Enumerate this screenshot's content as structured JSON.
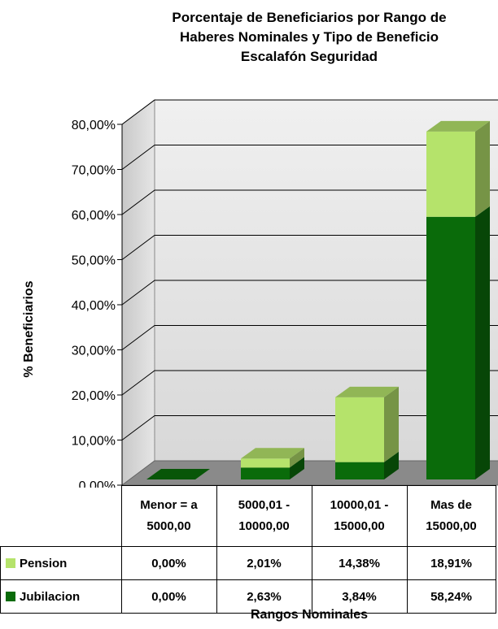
{
  "chart_data": {
    "type": "bar",
    "stacked": true,
    "three_d": true,
    "title": "Porcentaje de Beneficiarios por Rango de Haberes Nominales y Tipo de Beneficio Escalafón Seguridad",
    "title_lines": [
      "Porcentaje de Beneficiarios por Rango de",
      "Haberes Nominales y Tipo de Beneficio",
      "Escalafón Seguridad"
    ],
    "ylabel": "% Beneficiarios",
    "xlabel": "Rangos Nominales",
    "ylim": [
      0,
      80
    ],
    "yticks": [
      "0,00%",
      "10,00%",
      "20,00%",
      "30,00%",
      "40,00%",
      "50,00%",
      "60,00%",
      "70,00%",
      "80,00%"
    ],
    "categories": [
      [
        "Menor = a",
        "5000,00"
      ],
      [
        "5000,01 -",
        "10000,00"
      ],
      [
        "10000,01 -",
        "15000,00"
      ],
      [
        "Mas de",
        "15000,00"
      ]
    ],
    "series": [
      {
        "name": "Pension",
        "values": [
          0.0,
          2.01,
          14.38,
          18.91
        ],
        "labels": [
          "0,00%",
          "2,01%",
          "14,38%",
          "18,91%"
        ],
        "color": "#b5e36b"
      },
      {
        "name": "Jubilacion",
        "values": [
          0.0,
          2.63,
          3.84,
          58.24
        ],
        "labels": [
          "0,00%",
          "2,63%",
          "3,84%",
          "58,24%"
        ],
        "color": "#0a6b0a"
      }
    ],
    "grid": true,
    "legend": "data-table"
  }
}
